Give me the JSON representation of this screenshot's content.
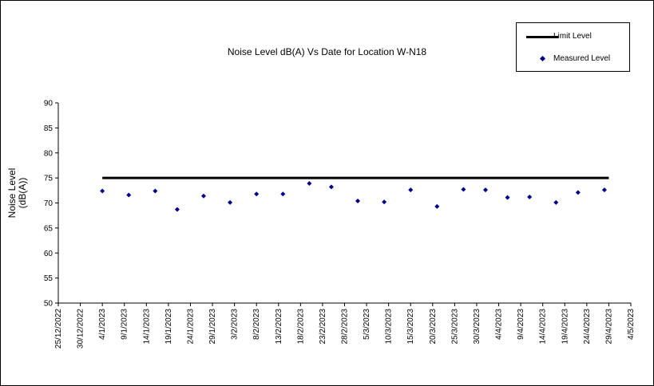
{
  "chart_data": {
    "type": "scatter",
    "title": "Noise Level dB(A) Vs Date for Location W-N18",
    "ylabel_lines": [
      "Noise Level",
      "(dB(A))"
    ],
    "xlabel": "",
    "ylim": [
      50,
      90
    ],
    "yticks": [
      50,
      55,
      60,
      65,
      70,
      75,
      80,
      85,
      90
    ],
    "xlim": [
      "2022-12-25",
      "2023-05-04"
    ],
    "xtick_labels": [
      "25/12/2022",
      "30/12/2022",
      "4/1/2023",
      "9/1/2023",
      "14/1/2023",
      "19/1/2023",
      "24/1/2023",
      "29/1/2023",
      "3/2/2023",
      "8/2/2023",
      "13/2/2023",
      "18/2/2023",
      "23/2/2023",
      "28/2/2023",
      "5/3/2023",
      "10/3/2023",
      "15/3/2023",
      "20/3/2023",
      "25/3/2023",
      "30/3/2023",
      "4/4/2023",
      "9/4/2023",
      "14/4/2023",
      "19/4/2023",
      "24/4/2023",
      "29/4/2023",
      "4/5/2023"
    ],
    "grid": false,
    "legend_position": "top-right",
    "series": [
      {
        "name": "Limit Level",
        "kind": "line",
        "color": "#000000",
        "x": [
          "2023-01-04",
          "2023-04-29"
        ],
        "y": [
          75,
          75
        ]
      },
      {
        "name": "Measured Level",
        "kind": "scatter",
        "color": "#00008b",
        "x": [
          "2023-01-04",
          "2023-01-10",
          "2023-01-16",
          "2023-01-21",
          "2023-01-27",
          "2023-02-02",
          "2023-02-08",
          "2023-02-14",
          "2023-02-20",
          "2023-02-25",
          "2023-03-03",
          "2023-03-09",
          "2023-03-15",
          "2023-03-21",
          "2023-03-27",
          "2023-04-01",
          "2023-04-06",
          "2023-04-11",
          "2023-04-17",
          "2023-04-22",
          "2023-04-28"
        ],
        "y": [
          72.4,
          71.6,
          72.4,
          68.7,
          71.4,
          70.1,
          71.8,
          71.8,
          73.9,
          73.2,
          70.4,
          70.2,
          72.6,
          69.3,
          72.7,
          72.6,
          71.1,
          71.2,
          70.1,
          72.1,
          72.6
        ]
      }
    ]
  }
}
